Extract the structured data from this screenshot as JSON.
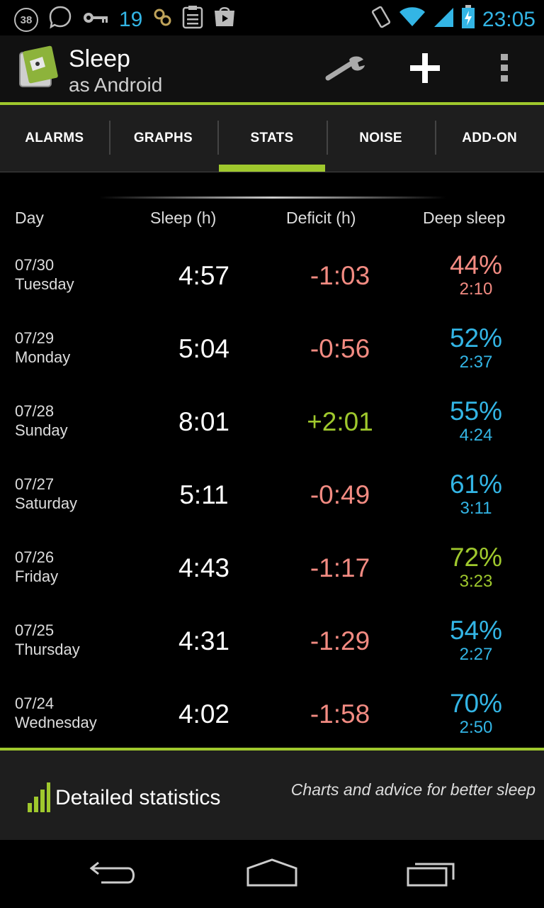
{
  "status_bar": {
    "notification_count_badge": "38",
    "key_count": "19",
    "time": "23:05",
    "icons": [
      "notification-badge-icon",
      "chat-bubble-icon",
      "key-icon",
      "gear-pair-icon",
      "clipboard-icon",
      "play-store-icon",
      "vibrate-icon",
      "wifi-icon",
      "signal-icon",
      "battery-charging-icon"
    ]
  },
  "action_bar": {
    "title": "Sleep",
    "subtitle": "as Android",
    "icons": [
      "app-logo-icon",
      "wrench-icon",
      "plus-icon",
      "overflow-menu-icon"
    ]
  },
  "tabs": [
    {
      "label": "ALARMS",
      "active": false
    },
    {
      "label": "GRAPHS",
      "active": false
    },
    {
      "label": "STATS",
      "active": true
    },
    {
      "label": "NOISE",
      "active": false
    },
    {
      "label": "ADD-ON",
      "active": false
    }
  ],
  "table": {
    "headers": {
      "day": "Day",
      "sleep": "Sleep (h)",
      "deficit": "Deficit (h)",
      "deep": "Deep sleep"
    },
    "rows": [
      {
        "date": "07/30",
        "weekday": "Tuesday",
        "sleep": "4:57",
        "deficit": "-1:03",
        "deep_pct": "44%",
        "deep_dur": "2:10"
      },
      {
        "date": "07/29",
        "weekday": "Monday",
        "sleep": "5:04",
        "deficit": "-0:56",
        "deep_pct": "52%",
        "deep_dur": "2:37"
      },
      {
        "date": "07/28",
        "weekday": "Sunday",
        "sleep": "8:01",
        "deficit": "+2:01",
        "deep_pct": "55%",
        "deep_dur": "4:24"
      },
      {
        "date": "07/27",
        "weekday": "Saturday",
        "sleep": "5:11",
        "deficit": "-0:49",
        "deep_pct": "61%",
        "deep_dur": "3:11"
      },
      {
        "date": "07/26",
        "weekday": "Friday",
        "sleep": "4:43",
        "deficit": "-1:17",
        "deep_pct": "72%",
        "deep_dur": "3:23"
      },
      {
        "date": "07/25",
        "weekday": "Thursday",
        "sleep": "4:31",
        "deficit": "-1:29",
        "deep_pct": "54%",
        "deep_dur": "2:27"
      },
      {
        "date": "07/24",
        "weekday": "Wednesday",
        "sleep": "4:02",
        "deficit": "-1:58",
        "deep_pct": "70%",
        "deep_dur": "2:50"
      }
    ],
    "colors": {
      "deficit_negative": "#f28b82",
      "deficit_positive": "#9fc82d",
      "deep_low": "#f28b82",
      "deep_mid": "#33b5e5",
      "deep_high": "#9fc82d"
    },
    "deep_colors": [
      "#f28b82",
      "#33b5e5",
      "#33b5e5",
      "#33b5e5",
      "#9fc82d",
      "#33b5e5",
      "#33b5e5"
    ],
    "deficit_colors": [
      "#f28b82",
      "#f28b82",
      "#9fc82d",
      "#f28b82",
      "#f28b82",
      "#f28b82",
      "#f28b82"
    ]
  },
  "bottom_panel": {
    "title": "Detailed statistics",
    "subtitle": "Charts and advice for better sleep",
    "icon": "bar-chart-icon"
  },
  "nav_bar": {
    "icons": [
      "back-icon",
      "home-icon",
      "recent-apps-icon"
    ]
  },
  "theme": {
    "accent": "#9fc82d",
    "holo_blue": "#33b5e5"
  }
}
